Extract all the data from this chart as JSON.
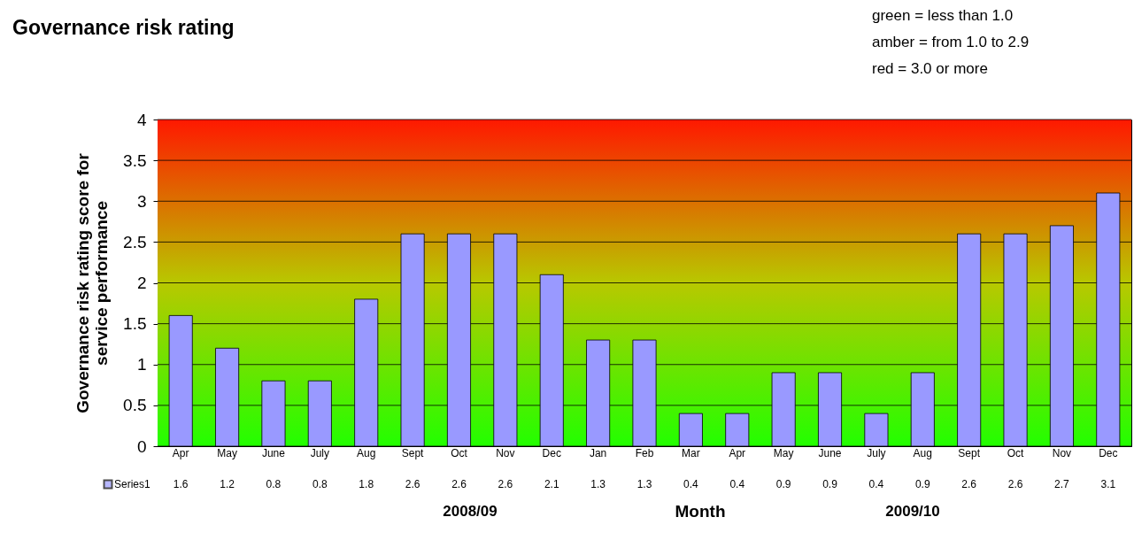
{
  "chart_data": {
    "type": "bar",
    "title": "Governance risk rating",
    "xlabel": "Month",
    "ylabel": "Governance risk rating score for service performance",
    "categories": [
      "Apr",
      "May",
      "June",
      "July",
      "Aug",
      "Sept",
      "Oct",
      "Nov",
      "Dec",
      "Jan",
      "Feb",
      "Mar",
      "Apr",
      "May",
      "June",
      "July",
      "Aug",
      "Sept",
      "Oct",
      "Nov",
      "Dec"
    ],
    "series": [
      {
        "name": "Series1",
        "color": "#9999ff",
        "values": [
          1.6,
          1.2,
          0.8,
          0.8,
          1.8,
          2.6,
          2.6,
          2.6,
          2.1,
          1.3,
          1.3,
          0.4,
          0.4,
          0.9,
          0.9,
          0.4,
          0.9,
          2.6,
          2.6,
          2.7,
          3.1
        ]
      }
    ],
    "ylim": [
      0,
      4
    ],
    "yticks": [
      0,
      0.5,
      1,
      1.5,
      2,
      2.5,
      3,
      3.5,
      4
    ],
    "grid": "y",
    "data_labels": true,
    "legend": "bottom left",
    "annotations": [
      "green = less than 1.0",
      "amber = from 1.0 to 2.9",
      "red = 3.0 or more",
      "2008/09",
      "2009/10"
    ]
  }
}
